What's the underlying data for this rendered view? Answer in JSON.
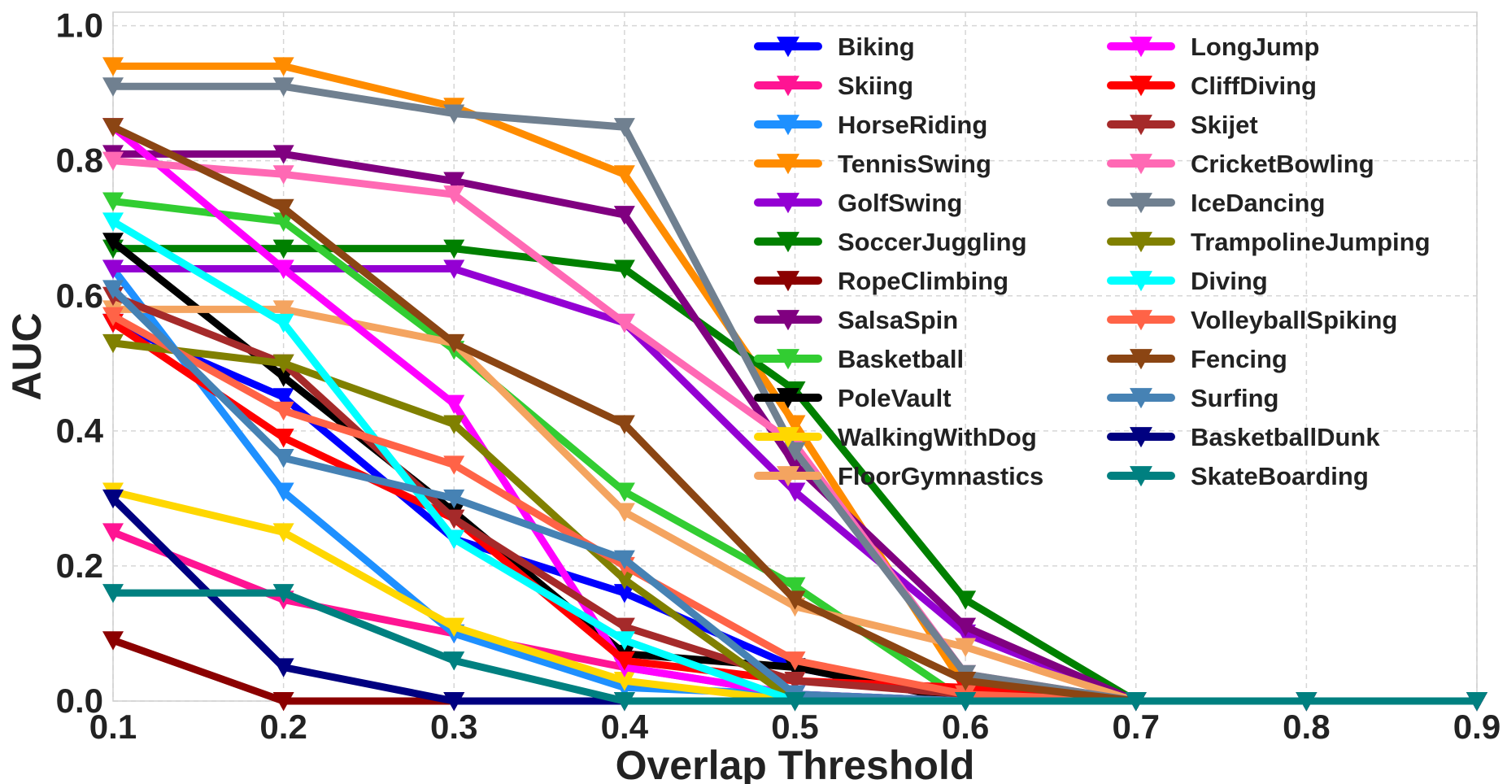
{
  "chart_data": {
    "type": "line",
    "title": "",
    "xlabel": "Overlap Threshold",
    "ylabel": "AUC",
    "xlim": [
      0.1,
      0.9
    ],
    "ylim": [
      0.0,
      1.02
    ],
    "x": [
      0.1,
      0.2,
      0.3,
      0.4,
      0.5,
      0.6,
      0.7,
      0.8,
      0.9
    ],
    "x_ticks": [
      "0.1",
      "0.2",
      "0.3",
      "0.4",
      "0.5",
      "0.6",
      "0.7",
      "0.8",
      "0.9"
    ],
    "y_ticks": [
      "0.0",
      "0.2",
      "0.4",
      "0.6",
      "0.8",
      "1.0"
    ],
    "grid": true,
    "legend_position": "top-right, two columns",
    "marker": "downward-triangle",
    "series": [
      {
        "name": "Biking",
        "color": "#0000ff",
        "values": [
          0.56,
          0.45,
          0.24,
          0.16,
          0.05,
          0.0,
          0.0,
          0.0,
          0.0
        ]
      },
      {
        "name": "Skiing",
        "color": "#ff1493",
        "values": [
          0.25,
          0.15,
          0.1,
          0.05,
          0.01,
          0.0,
          0.0,
          0.0,
          0.0
        ]
      },
      {
        "name": "HorseRiding",
        "color": "#1e90ff",
        "values": [
          0.64,
          0.31,
          0.1,
          0.02,
          0.01,
          0.0,
          0.0,
          0.0,
          0.0
        ]
      },
      {
        "name": "TennisSwing",
        "color": "#ff8c00",
        "values": [
          0.94,
          0.94,
          0.88,
          0.78,
          0.41,
          0.02,
          0.0,
          0.0,
          0.0
        ]
      },
      {
        "name": "GolfSwing",
        "color": "#9400d3",
        "values": [
          0.64,
          0.64,
          0.64,
          0.56,
          0.31,
          0.1,
          0.0,
          0.0,
          0.0
        ]
      },
      {
        "name": "SoccerJuggling",
        "color": "#008000",
        "values": [
          0.67,
          0.67,
          0.67,
          0.64,
          0.46,
          0.15,
          0.0,
          0.0,
          0.0
        ]
      },
      {
        "name": "RopeClimbing",
        "color": "#8b0000",
        "values": [
          0.09,
          0.0,
          0.0,
          0.0,
          0.0,
          0.0,
          0.0,
          0.0,
          0.0
        ]
      },
      {
        "name": "SalsaSpin",
        "color": "#800080",
        "values": [
          0.81,
          0.81,
          0.77,
          0.72,
          0.35,
          0.11,
          0.0,
          0.0,
          0.0
        ]
      },
      {
        "name": "Basketball",
        "color": "#32cd32",
        "values": [
          0.74,
          0.71,
          0.52,
          0.31,
          0.17,
          0.0,
          0.0,
          0.0,
          0.0
        ]
      },
      {
        "name": "PoleVault",
        "color": "#000000",
        "values": [
          0.68,
          0.48,
          0.28,
          0.07,
          0.05,
          0.0,
          0.0,
          0.0,
          0.0
        ]
      },
      {
        "name": "WalkingWithDog",
        "color": "#ffd700",
        "values": [
          0.31,
          0.25,
          0.11,
          0.03,
          0.0,
          0.0,
          0.0,
          0.0,
          0.0
        ]
      },
      {
        "name": "FloorGymnastics",
        "color": "#f4a460",
        "values": [
          0.58,
          0.58,
          0.53,
          0.28,
          0.14,
          0.08,
          0.0,
          0.0,
          0.0
        ]
      },
      {
        "name": "LongJump",
        "color": "#ff00ff",
        "values": [
          0.85,
          0.64,
          0.44,
          0.05,
          0.01,
          0.0,
          0.0,
          0.0,
          0.0
        ]
      },
      {
        "name": "CliffDiving",
        "color": "#ff0000",
        "values": [
          0.56,
          0.39,
          0.27,
          0.06,
          0.03,
          0.02,
          0.0,
          0.0,
          0.0
        ]
      },
      {
        "name": "Skijet",
        "color": "#a52a2a",
        "values": [
          0.6,
          0.5,
          0.27,
          0.11,
          0.03,
          0.01,
          0.0,
          0.0,
          0.0
        ]
      },
      {
        "name": "CricketBowling",
        "color": "#ff69b4",
        "values": [
          0.8,
          0.78,
          0.75,
          0.56,
          0.38,
          0.04,
          0.0,
          0.0,
          0.0
        ]
      },
      {
        "name": "IceDancing",
        "color": "#708090",
        "values": [
          0.91,
          0.91,
          0.87,
          0.85,
          0.37,
          0.04,
          0.0,
          0.0,
          0.0
        ]
      },
      {
        "name": "TrampolineJumping",
        "color": "#808000",
        "values": [
          0.53,
          0.5,
          0.41,
          0.18,
          0.0,
          0.0,
          0.0,
          0.0,
          0.0
        ]
      },
      {
        "name": "Diving",
        "color": "#00ffff",
        "values": [
          0.71,
          0.56,
          0.24,
          0.09,
          0.0,
          0.0,
          0.0,
          0.0,
          0.0
        ]
      },
      {
        "name": "VolleyballSpiking",
        "color": "#ff6347",
        "values": [
          0.57,
          0.43,
          0.35,
          0.2,
          0.06,
          0.01,
          0.0,
          0.0,
          0.0
        ]
      },
      {
        "name": "Fencing",
        "color": "#8b4513",
        "values": [
          0.85,
          0.73,
          0.53,
          0.41,
          0.15,
          0.03,
          0.0,
          0.0,
          0.0
        ]
      },
      {
        "name": "Surfing",
        "color": "#4682b4",
        "values": [
          0.61,
          0.36,
          0.3,
          0.21,
          0.01,
          0.0,
          0.0,
          0.0,
          0.0
        ]
      },
      {
        "name": "BasketballDunk",
        "color": "#000080",
        "values": [
          0.3,
          0.05,
          0.0,
          0.0,
          0.0,
          0.0,
          0.0,
          0.0,
          0.0
        ]
      },
      {
        "name": "SkateBoarding",
        "color": "#008080",
        "values": [
          0.16,
          0.16,
          0.06,
          0.0,
          0.0,
          0.0,
          0.0,
          0.0,
          0.0
        ]
      }
    ]
  }
}
